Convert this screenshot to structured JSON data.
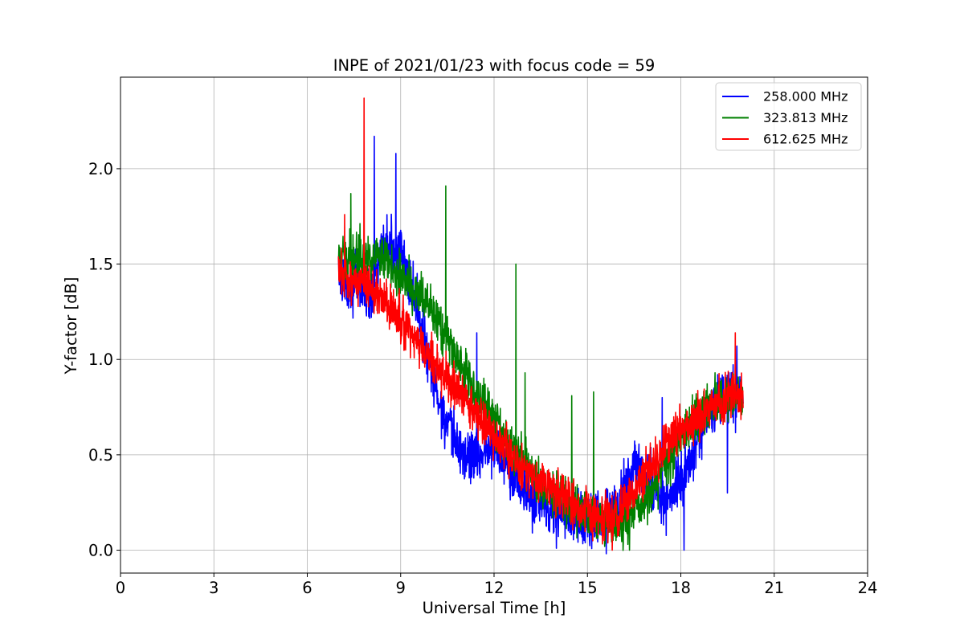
{
  "chart_data": {
    "type": "line",
    "title": "INPE of 2021/01/23 with focus code = 59",
    "xlabel": "Universal Time [h]",
    "ylabel": "Y-factor [dB]",
    "xlim": [
      0,
      24
    ],
    "ylim": [
      -0.12,
      2.48
    ],
    "xticks": [
      0,
      3,
      6,
      9,
      12,
      15,
      18,
      21,
      24
    ],
    "xtick_labels": [
      "0",
      "3",
      "6",
      "9",
      "12",
      "15",
      "18",
      "21",
      "24"
    ],
    "yticks": [
      0.0,
      0.5,
      1.0,
      1.5,
      2.0
    ],
    "ytick_labels": [
      "0.0",
      "0.5",
      "1.0",
      "1.5",
      "2.0"
    ],
    "grid": true,
    "legend_position": "top-right",
    "series": [
      {
        "name": "258.000 MHz",
        "color": "#0000ff",
        "x": [
          7.0,
          7.5,
          8.0,
          8.5,
          9.0,
          9.5,
          10.0,
          10.5,
          11.0,
          11.5,
          12.0,
          12.5,
          13.0,
          13.5,
          14.0,
          14.5,
          15.0,
          15.5,
          16.0,
          16.5,
          17.0,
          17.5,
          18.0,
          18.5,
          19.0,
          19.5,
          20.0
        ],
        "y": [
          1.45,
          1.4,
          1.35,
          1.6,
          1.55,
          1.3,
          0.9,
          0.65,
          0.5,
          0.5,
          0.55,
          0.45,
          0.3,
          0.25,
          0.2,
          0.18,
          0.15,
          0.15,
          0.22,
          0.45,
          0.35,
          0.25,
          0.35,
          0.55,
          0.75,
          0.8,
          0.8
        ],
        "noise": 0.07,
        "spikes": [
          [
            8.15,
            2.17
          ],
          [
            8.85,
            2.08
          ],
          [
            11.45,
            1.14
          ],
          [
            17.4,
            0.8
          ],
          [
            18.1,
            0.0
          ],
          [
            19.8,
            1.07
          ],
          [
            19.5,
            0.3
          ],
          [
            14.0,
            0.01
          ]
        ]
      },
      {
        "name": "323.813 MHz",
        "color": "#008000",
        "x": [
          7.0,
          7.5,
          8.0,
          8.5,
          9.0,
          9.5,
          10.0,
          10.5,
          11.0,
          11.5,
          12.0,
          12.5,
          13.0,
          13.5,
          14.0,
          14.5,
          15.0,
          15.5,
          16.0,
          16.5,
          17.0,
          17.5,
          18.0,
          18.5,
          19.0,
          19.5,
          20.0
        ],
        "y": [
          1.5,
          1.55,
          1.55,
          1.5,
          1.45,
          1.35,
          1.25,
          1.1,
          0.95,
          0.8,
          0.7,
          0.55,
          0.45,
          0.35,
          0.3,
          0.25,
          0.2,
          0.15,
          0.12,
          0.2,
          0.3,
          0.45,
          0.6,
          0.7,
          0.75,
          0.8,
          0.82
        ],
        "noise": 0.06,
        "spikes": [
          [
            7.4,
            1.87
          ],
          [
            10.45,
            1.91
          ],
          [
            12.7,
            1.5
          ],
          [
            13.0,
            0.93
          ],
          [
            14.5,
            0.81
          ],
          [
            15.2,
            0.83
          ],
          [
            16.35,
            0.0
          ],
          [
            15.55,
            0.02
          ],
          [
            19.1,
            0.93
          ]
        ]
      },
      {
        "name": "612.625 MHz",
        "color": "#ff0000",
        "x": [
          7.0,
          7.5,
          8.0,
          8.5,
          9.0,
          9.5,
          10.0,
          10.5,
          11.0,
          11.5,
          12.0,
          12.5,
          13.0,
          13.5,
          14.0,
          14.5,
          15.0,
          15.5,
          16.0,
          16.5,
          17.0,
          17.5,
          18.0,
          18.5,
          19.0,
          19.5,
          20.0
        ],
        "y": [
          1.45,
          1.42,
          1.4,
          1.3,
          1.2,
          1.1,
          1.0,
          0.9,
          0.8,
          0.7,
          0.6,
          0.5,
          0.42,
          0.36,
          0.3,
          0.25,
          0.2,
          0.15,
          0.2,
          0.3,
          0.42,
          0.55,
          0.62,
          0.7,
          0.75,
          0.8,
          0.82
        ],
        "noise": 0.06,
        "spikes": [
          [
            7.82,
            2.37
          ],
          [
            7.2,
            1.76
          ],
          [
            19.75,
            1.14
          ],
          [
            15.8,
            0.0
          ]
        ]
      }
    ]
  }
}
